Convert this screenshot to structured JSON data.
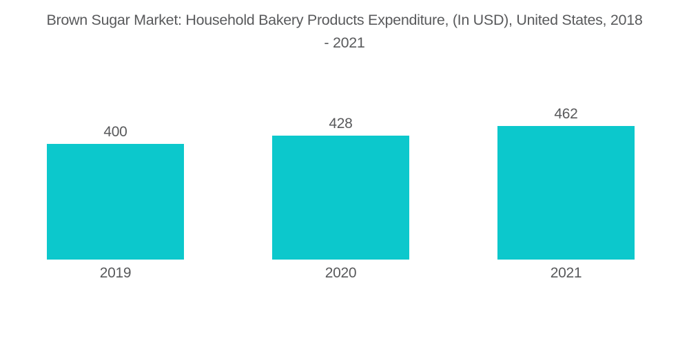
{
  "figure": {
    "title_lines": [
      "Brown Sugar Market: Household Bakery Products Expenditure, (In USD), United States, 2018",
      "- 2021"
    ]
  },
  "colors": {
    "bar": "#0cc8cc",
    "text": "#58595b",
    "background": "#ffffff"
  },
  "chart_data": {
    "type": "bar",
    "title": "Brown Sugar Market: Household Bakery Products Expenditure, (In USD), United States, 2018 - 2021",
    "categories": [
      "2019",
      "2020",
      "2021"
    ],
    "values": [
      400,
      428,
      462
    ],
    "xlabel": "",
    "ylabel": "",
    "data_labels": "above-bars",
    "legend": "none",
    "grid": false,
    "axes_visible": false
  }
}
